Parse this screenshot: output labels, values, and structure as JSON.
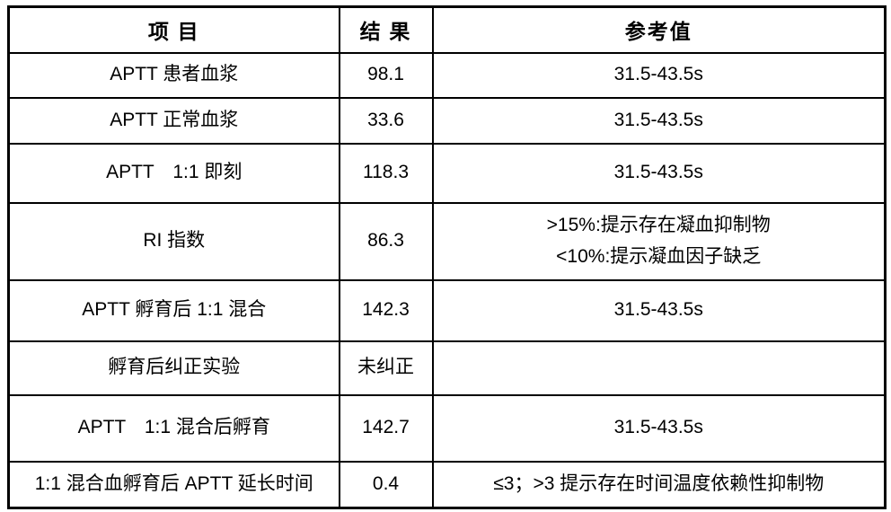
{
  "table": {
    "columns": [
      "项 目",
      "结 果",
      "参考值"
    ],
    "rows": [
      {
        "item": "APTT 患者血浆",
        "result": "98.1",
        "reference": [
          "31.5-43.5s"
        ]
      },
      {
        "item": "APTT 正常血浆",
        "result": "33.6",
        "reference": [
          "31.5-43.5s"
        ]
      },
      {
        "item": "APTT　1:1 即刻",
        "result": "118.3",
        "reference": [
          "31.5-43.5s"
        ]
      },
      {
        "item": "RI 指数",
        "result": "86.3",
        "reference": [
          ">15%:提示存在凝血抑制物",
          "<10%:提示凝血因子缺乏"
        ]
      },
      {
        "item": "APTT 孵育后 1:1 混合",
        "result": "142.3",
        "reference": [
          "31.5-43.5s"
        ]
      },
      {
        "item": "孵育后纠正实验",
        "result": "未纠正",
        "reference": []
      },
      {
        "item": "APTT　1:1 混合后孵育",
        "result": "142.7",
        "reference": [
          "31.5-43.5s"
        ]
      },
      {
        "item": "1:1 混合血孵育后 APTT 延长时间",
        "result": "0.4",
        "reference": [
          "≤3；>3 提示存在时间温度依赖性抑制物"
        ]
      }
    ],
    "colors": {
      "border": "#000000",
      "background": "#ffffff",
      "text": "#000000"
    }
  }
}
